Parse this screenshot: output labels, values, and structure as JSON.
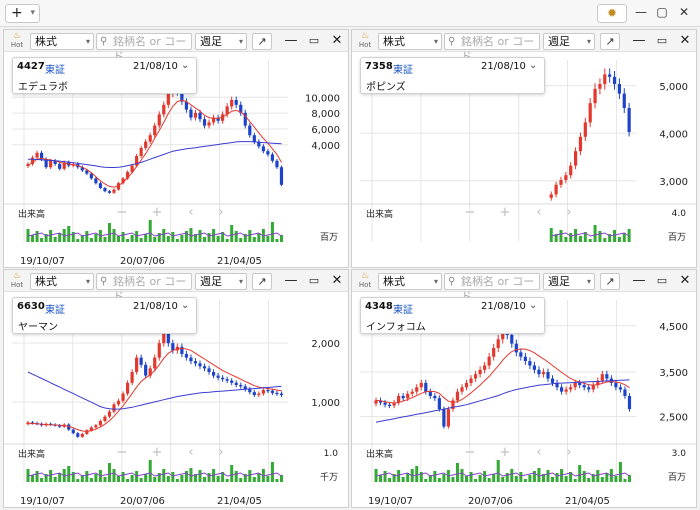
{
  "topbar": {
    "add_label": "+",
    "add_chevron": "chevron-down-icon",
    "settings_icon": "gear-icon",
    "window_controls": [
      "minimize-icon",
      "maximize-icon",
      "close-icon"
    ]
  },
  "common": {
    "hot_label": "Hot",
    "market_select": "株式",
    "search_placeholder": "銘柄名 or コード",
    "period_select": "週足",
    "volume_label": "出来高",
    "date": "21/08/10"
  },
  "panels": [
    {
      "code": "4427",
      "exchange": "東証",
      "name": "エデュラボ",
      "y_ticks": [
        "10,000",
        "8,000",
        "6,000",
        "4,000"
      ],
      "vol_max": "",
      "vol_unit": "百万",
      "x_ticks": [
        "19/10/07",
        "20/07/06",
        "21/04/05"
      ]
    },
    {
      "code": "7358",
      "exchange": "東証",
      "name": "ポピンズ",
      "y_ticks": [
        "5,000",
        "4,000",
        "3,000"
      ],
      "vol_max": "4.0",
      "vol_unit": "百万",
      "x_ticks": []
    },
    {
      "code": "6630",
      "exchange": "東証",
      "name": "ヤーマン",
      "y_ticks": [
        "2,000",
        "1,000"
      ],
      "vol_max": "1.0",
      "vol_unit": "千万",
      "x_ticks": [
        "19/10/07",
        "20/07/06",
        "21/04/05"
      ]
    },
    {
      "code": "4348",
      "exchange": "東証",
      "name": "インフォコム",
      "y_ticks": [
        "4,500",
        "3,500",
        "2,500"
      ],
      "vol_max": "3.0",
      "vol_unit": "百万",
      "x_ticks": [
        "19/10/07",
        "20/07/06",
        "21/04/05"
      ]
    }
  ],
  "chart_data": [
    {
      "type": "candlestick",
      "ylim": [
        2000,
        11000
      ],
      "close": [
        4500,
        4900,
        5200,
        4800,
        4300,
        4700,
        4500,
        4200,
        4600,
        4400,
        4500,
        4300,
        4100,
        3900,
        3600,
        3300,
        3000,
        2800,
        2700,
        2900,
        3300,
        3600,
        4000,
        4400,
        5000,
        5500,
        5900,
        6300,
        6900,
        7600,
        8200,
        8900,
        9400,
        9000,
        8400,
        7900,
        7400,
        7700,
        7300,
        6900,
        7100,
        7400,
        7200,
        7600,
        8100,
        8500,
        8200,
        7700,
        6900,
        6300,
        5900,
        5600,
        5300,
        5100,
        4700,
        4300,
        3200
      ],
      "ma_short": [
        4400,
        4600,
        4800,
        4850,
        4800,
        4750,
        4700,
        4600,
        4550,
        4500,
        4450,
        4400,
        4300,
        4150,
        3950,
        3700,
        3450,
        3250,
        3100,
        3050,
        3150,
        3350,
        3650,
        3950,
        4350,
        4750,
        5150,
        5600,
        6100,
        6600,
        7100,
        7650,
        8100,
        8400,
        8500,
        8400,
        8200,
        8000,
        7800,
        7550,
        7400,
        7350,
        7350,
        7450,
        7600,
        7800,
        7850,
        7750,
        7500,
        7150,
        6800,
        6450,
        6100,
        5800,
        5450,
        5100,
        4600
      ],
      "ma_long": [
        4800,
        4800,
        4780,
        4760,
        4740,
        4720,
        4700,
        4680,
        4650,
        4620,
        4580,
        4540,
        4500,
        4460,
        4420,
        4380,
        4330,
        4300,
        4280,
        4280,
        4300,
        4340,
        4400,
        4460,
        4520,
        4600,
        4700,
        4800,
        4900,
        5000,
        5100,
        5200,
        5300,
        5350,
        5400,
        5450,
        5480,
        5520,
        5560,
        5600,
        5640,
        5680,
        5720,
        5760,
        5800,
        5840,
        5880,
        5900,
        5900,
        5900,
        5880,
        5860,
        5840,
        5820,
        5800,
        5780,
        5760
      ]
    },
    {
      "type": "candlestick",
      "ylim": [
        2200,
        5200
      ],
      "close": [
        null,
        null,
        null,
        null,
        null,
        null,
        null,
        null,
        null,
        null,
        null,
        null,
        null,
        null,
        null,
        null,
        null,
        null,
        null,
        null,
        null,
        null,
        null,
        null,
        null,
        null,
        null,
        null,
        null,
        null,
        null,
        null,
        null,
        null,
        null,
        null,
        2400,
        2600,
        2700,
        2800,
        3000,
        3300,
        3600,
        3900,
        4300,
        4600,
        4700,
        4900,
        4850,
        4700,
        4500,
        4200,
        3700
      ],
      "ma_short": [],
      "ma_long": []
    },
    {
      "type": "candlestick",
      "ylim": [
        500,
        2500
      ],
      "close": [
        800,
        790,
        780,
        760,
        780,
        770,
        760,
        740,
        770,
        700,
        650,
        600,
        640,
        690,
        730,
        760,
        820,
        880,
        950,
        1050,
        1100,
        1200,
        1350,
        1500,
        1700,
        1600,
        1450,
        1550,
        1700,
        1900,
        2150,
        1900,
        1800,
        1850,
        1750,
        1700,
        1650,
        1620,
        1580,
        1550,
        1500,
        1450,
        1420,
        1400,
        1380,
        1350,
        1320,
        1300,
        1260,
        1220,
        1180,
        1200,
        1250,
        1240,
        1210,
        1200,
        1180
      ],
      "ma_short": [
        780,
        785,
        780,
        775,
        770,
        768,
        765,
        760,
        755,
        745,
        725,
        700,
        680,
        675,
        685,
        705,
        735,
        775,
        825,
        885,
        955,
        1030,
        1115,
        1200,
        1290,
        1370,
        1420,
        1460,
        1520,
        1600,
        1690,
        1760,
        1800,
        1820,
        1830,
        1820,
        1800,
        1760,
        1720,
        1680,
        1640,
        1600,
        1560,
        1520,
        1490,
        1460,
        1430,
        1400,
        1370,
        1340,
        1310,
        1290,
        1280,
        1270,
        1260,
        1250,
        1240
      ],
      "ma_long": [
        1500,
        1470,
        1440,
        1410,
        1380,
        1350,
        1320,
        1290,
        1260,
        1230,
        1200,
        1170,
        1140,
        1110,
        1080,
        1050,
        1020,
        1000,
        990,
        985,
        985,
        990,
        1000,
        1010,
        1025,
        1040,
        1055,
        1070,
        1085,
        1100,
        1115,
        1130,
        1145,
        1160,
        1170,
        1180,
        1190,
        1200,
        1210,
        1215,
        1220,
        1225,
        1230,
        1235,
        1240,
        1245,
        1250,
        1255,
        1260,
        1265,
        1270,
        1275,
        1280,
        1285,
        1290,
        1295,
        1300
      ]
    },
    {
      "type": "candlestick",
      "ylim": [
        1500,
        4800
      ],
      "close": [
        2500,
        2450,
        2400,
        2380,
        2450,
        2600,
        2550,
        2650,
        2700,
        2800,
        2900,
        2700,
        2600,
        2550,
        2300,
        1900,
        2300,
        2500,
        2700,
        2800,
        2900,
        3000,
        3100,
        3200,
        3300,
        3500,
        3700,
        3900,
        4100,
        4000,
        3800,
        3600,
        3500,
        3400,
        3300,
        3200,
        3100,
        3150,
        3000,
        2900,
        2800,
        2700,
        2750,
        2800,
        2900,
        2850,
        2800,
        2750,
        2850,
        2950,
        3100,
        3000,
        2900,
        2800,
        2750,
        2600,
        2300
      ],
      "ma_short": [
        2500,
        2490,
        2470,
        2450,
        2440,
        2450,
        2480,
        2520,
        2560,
        2610,
        2660,
        2700,
        2710,
        2700,
        2660,
        2560,
        2480,
        2450,
        2470,
        2520,
        2590,
        2670,
        2760,
        2850,
        2950,
        3050,
        3170,
        3290,
        3420,
        3530,
        3620,
        3660,
        3680,
        3670,
        3640,
        3590,
        3520,
        3450,
        3380,
        3300,
        3220,
        3140,
        3070,
        3000,
        2950,
        2920,
        2890,
        2860,
        2850,
        2860,
        2890,
        2920,
        2930,
        2920,
        2900,
        2860,
        2790
      ],
      "ma_long": [
        2000,
        2020,
        2040,
        2060,
        2080,
        2100,
        2120,
        2140,
        2160,
        2180,
        2200,
        2220,
        2240,
        2260,
        2280,
        2300,
        2320,
        2340,
        2360,
        2380,
        2400,
        2430,
        2460,
        2490,
        2520,
        2550,
        2580,
        2610,
        2650,
        2690,
        2720,
        2750,
        2770,
        2790,
        2810,
        2830,
        2850,
        2860,
        2870,
        2880,
        2890,
        2895,
        2900,
        2905,
        2910,
        2915,
        2920,
        2925,
        2930,
        2935,
        2940,
        2945,
        2950,
        2955,
        2960,
        2965,
        2970
      ]
    }
  ],
  "colors": {
    "up": "#e2382e",
    "down": "#1d43c8",
    "ma_short": "#e2382e",
    "ma_long": "#3a3bd0",
    "vol_bar": "#33aa33",
    "grid": "#e6e6e6"
  }
}
